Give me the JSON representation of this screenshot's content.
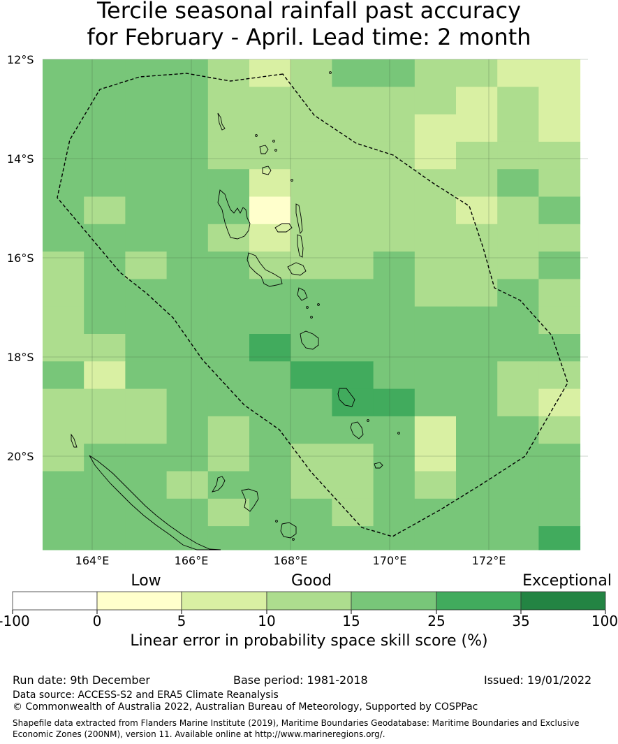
{
  "title": {
    "line1": "Tercile seasonal rainfall past accuracy",
    "line2": "for February - April. Lead time: 2 month"
  },
  "map": {
    "lat_labels": [
      "12°S",
      "14°S",
      "16°S",
      "18°S",
      "20°S"
    ],
    "lon_labels": [
      "164°E",
      "166°E",
      "168°E",
      "170°E",
      "172°E"
    ],
    "lon_range": [
      163.0,
      174.0
    ],
    "lat_range": [
      -21.9,
      -12.0
    ],
    "cell_size_deg": 0.833,
    "gridlines": true,
    "colors": {
      "1": "#ffffcc",
      "2": "#d9f0a3",
      "3": "#addd8e",
      "4": "#78c679",
      "5": "#41ab5d",
      "6": "#238443",
      "eez_line": "#000000"
    },
    "skill_grid": [
      [
        4,
        4,
        4,
        4,
        3,
        2,
        3,
        4,
        4,
        3,
        3,
        2,
        2
      ],
      [
        4,
        4,
        4,
        4,
        3,
        3,
        3,
        3,
        3,
        3,
        2,
        3,
        2
      ],
      [
        4,
        4,
        4,
        4,
        3,
        3,
        3,
        3,
        3,
        2,
        2,
        3,
        2
      ],
      [
        4,
        4,
        4,
        4,
        3,
        3,
        3,
        3,
        3,
        2,
        3,
        3,
        3
      ],
      [
        4,
        4,
        4,
        4,
        4,
        2,
        3,
        3,
        3,
        3,
        3,
        4,
        3
      ],
      [
        4,
        3,
        4,
        4,
        4,
        1,
        3,
        3,
        3,
        3,
        2,
        3,
        4
      ],
      [
        4,
        4,
        4,
        4,
        3,
        2,
        3,
        3,
        3,
        3,
        3,
        3,
        3
      ],
      [
        3,
        4,
        3,
        4,
        4,
        3,
        3,
        3,
        4,
        3,
        3,
        3,
        4
      ],
      [
        3,
        4,
        4,
        4,
        4,
        4,
        4,
        4,
        4,
        3,
        3,
        4,
        3
      ],
      [
        3,
        4,
        4,
        4,
        4,
        4,
        4,
        4,
        4,
        4,
        4,
        4,
        3
      ],
      [
        3,
        3,
        4,
        4,
        4,
        5,
        4,
        4,
        4,
        4,
        4,
        4,
        4
      ],
      [
        4,
        2,
        4,
        4,
        4,
        4,
        5,
        5,
        4,
        4,
        4,
        3,
        3
      ],
      [
        3,
        3,
        3,
        4,
        4,
        4,
        4,
        5,
        5,
        4,
        4,
        3,
        2
      ],
      [
        3,
        3,
        3,
        4,
        3,
        4,
        4,
        4,
        4,
        2,
        4,
        4,
        3
      ],
      [
        3,
        4,
        4,
        4,
        3,
        4,
        3,
        3,
        4,
        2,
        4,
        4,
        4
      ],
      [
        4,
        4,
        4,
        3,
        4,
        4,
        3,
        3,
        4,
        3,
        4,
        4,
        4
      ],
      [
        4,
        4,
        4,
        4,
        3,
        4,
        4,
        3,
        4,
        4,
        4,
        4,
        4
      ],
      [
        4,
        4,
        4,
        4,
        4,
        4,
        4,
        4,
        4,
        4,
        4,
        4,
        5
      ]
    ]
  },
  "legend": {
    "category_labels": [
      "Low",
      "Good",
      "Exceptional"
    ],
    "ticks": [
      "-100",
      "0",
      "5",
      "10",
      "15",
      "25",
      "35",
      "100"
    ],
    "bin_colors": [
      "#ffffff",
      "#ffffcc",
      "#d9f0a3",
      "#addd8e",
      "#78c679",
      "#41ab5d",
      "#238443"
    ],
    "title": "Linear error in probability space skill score (%)"
  },
  "footer": {
    "run_date": "Run date: 9th December",
    "base_period": "Base period: 1981-2018",
    "issued": "Issued: 19/01/2022",
    "data_source": "Data source: ACCESS-S2 and ERA5 Climate Reanalysis",
    "copyright": "© Commonwealth of Australia 2022, Australian Bureau of Meteorology, Supported by COSPPac",
    "shapefile_line1": "Shapefile data extracted from Flanders Marine Institute (2019), Maritime Boundaries Geodatabase: Maritime Boundaries and Exclusive",
    "shapefile_line2": "Economic Zones (200NM), version 11. Available online at http://www.marineregions.org/."
  }
}
